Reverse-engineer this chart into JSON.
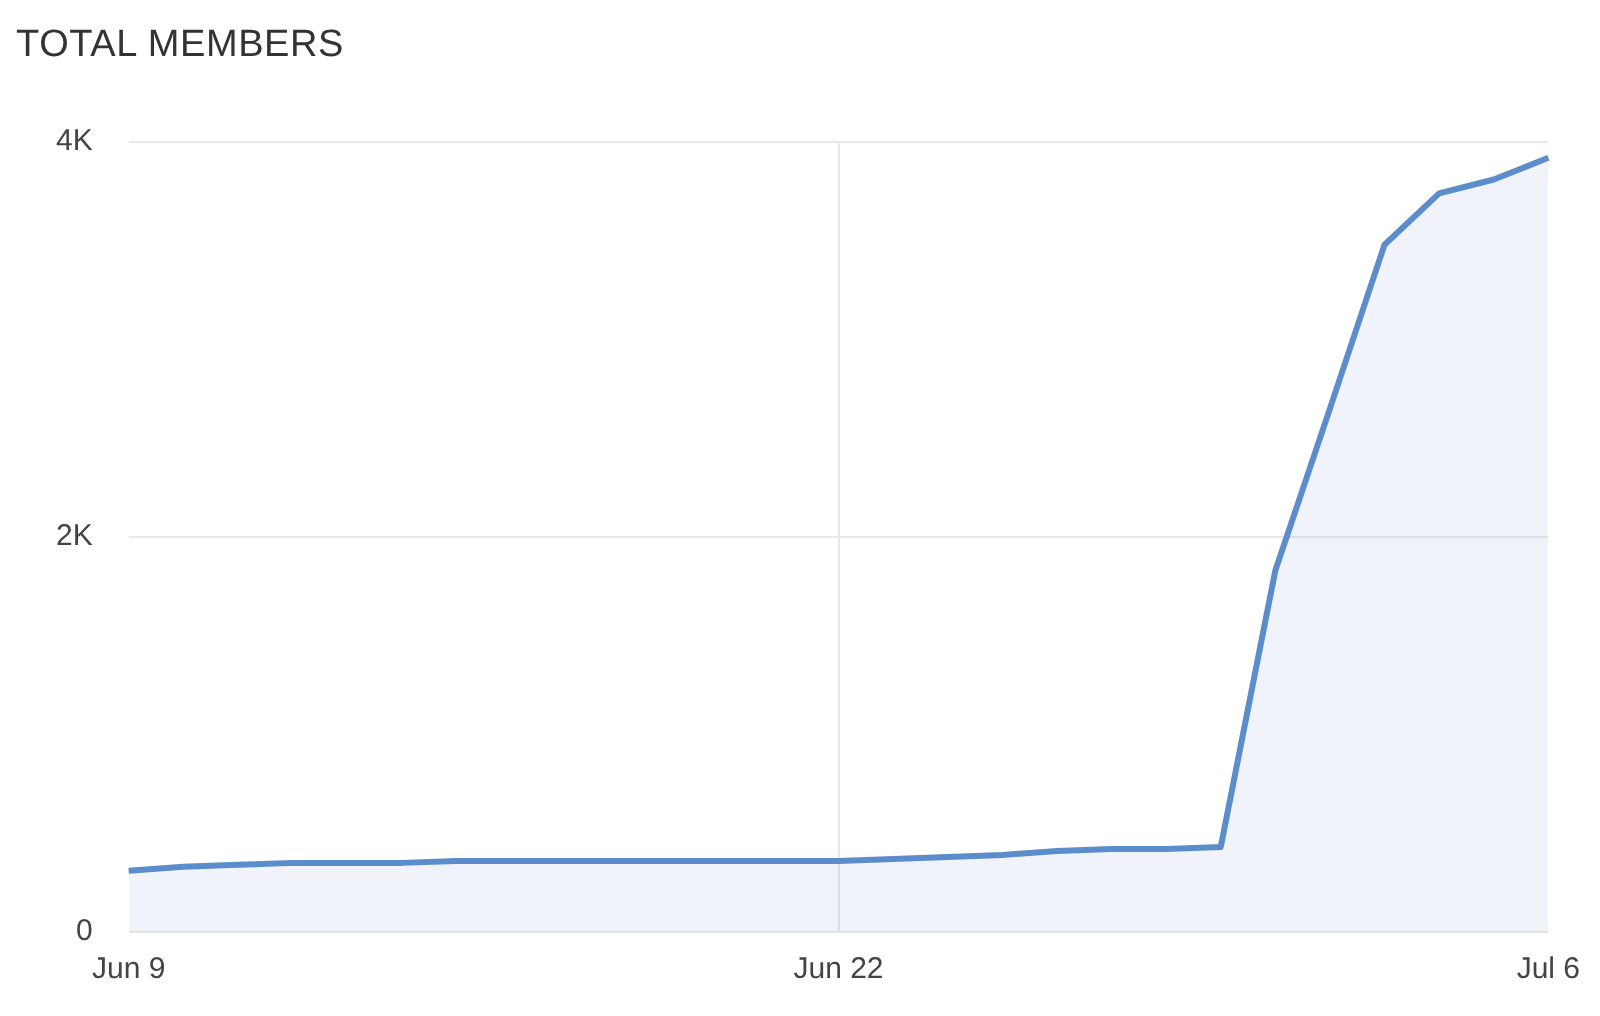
{
  "chart_data": {
    "type": "area",
    "title": "TOTAL MEMBERS",
    "categories": [
      "Jun 9",
      null,
      null,
      null,
      null,
      null,
      null,
      null,
      null,
      null,
      null,
      null,
      null,
      "Jun 22",
      null,
      null,
      null,
      null,
      null,
      null,
      null,
      null,
      null,
      null,
      null,
      null,
      "Jul 6"
    ],
    "series": [
      {
        "color": "#5b8ccc",
        "values": [
          310,
          330,
          340,
          350,
          350,
          350,
          360,
          360,
          360,
          360,
          360,
          360,
          360,
          360,
          370,
          380,
          390,
          410,
          420,
          420,
          430,
          1830,
          2650,
          3480,
          3740,
          3810,
          3920
        ]
      }
    ],
    "ylim": [
      0,
      4000
    ],
    "yticks": [
      {
        "value": 0,
        "label": "0"
      },
      {
        "value": 2000,
        "label": "2K"
      },
      {
        "value": 4000,
        "label": "4K"
      }
    ],
    "grid": true,
    "legend": false
  }
}
